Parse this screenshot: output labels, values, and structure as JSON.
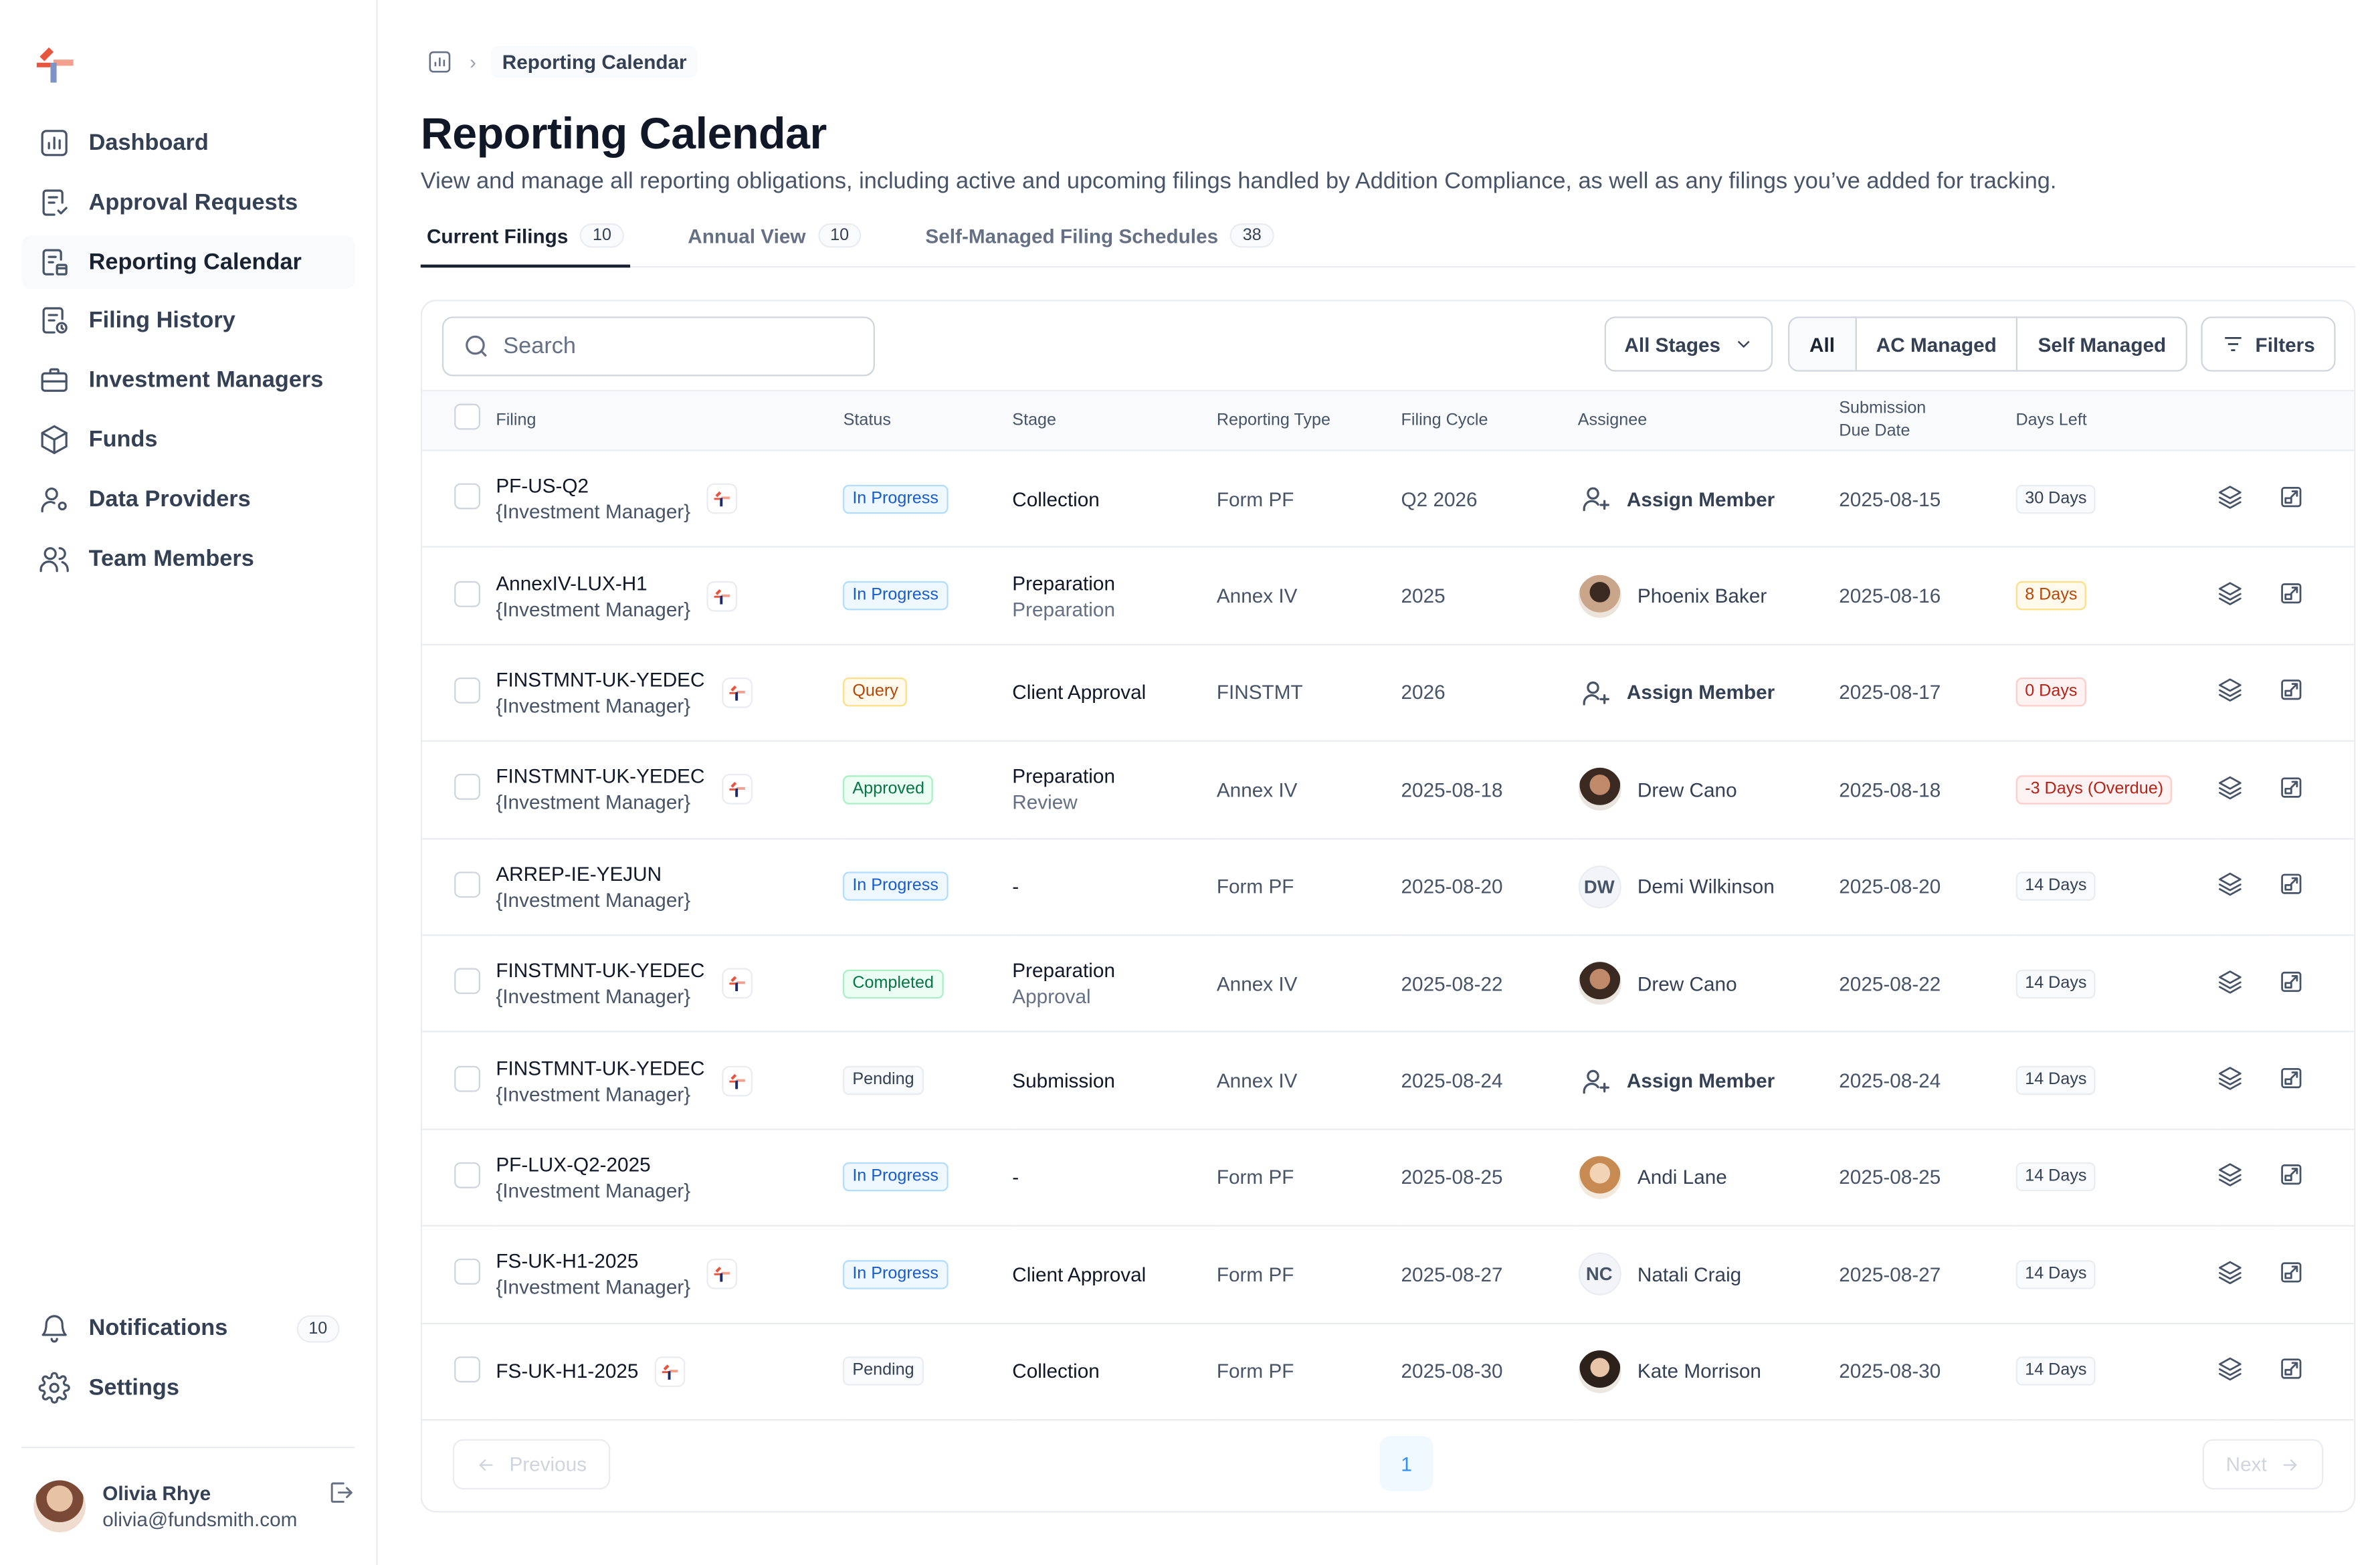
{
  "sidebar": {
    "items": [
      {
        "label": "Dashboard"
      },
      {
        "label": "Approval Requests"
      },
      {
        "label": "Reporting Calendar"
      },
      {
        "label": "Filing History"
      },
      {
        "label": "Investment Managers"
      },
      {
        "label": "Funds"
      },
      {
        "label": "Data Providers"
      },
      {
        "label": "Team Members"
      }
    ],
    "notifications": {
      "label": "Notifications",
      "count": "10"
    },
    "settings": {
      "label": "Settings"
    },
    "user": {
      "name": "Olivia Rhye",
      "email": "olivia@fundsmith.com"
    }
  },
  "breadcrumb": {
    "current": "Reporting Calendar"
  },
  "page": {
    "title": "Reporting Calendar",
    "subtitle": "View and manage all reporting obligations, including active and upcoming filings handled by Addition Compliance, as well as any filings you’ve added for tracking."
  },
  "tabs": [
    {
      "label": "Current Filings",
      "count": "10"
    },
    {
      "label": "Annual View",
      "count": "10"
    },
    {
      "label": "Self-Managed Filing Schedules",
      "count": "38"
    }
  ],
  "toolbar": {
    "search_placeholder": "Search",
    "stage_select": "All Stages",
    "segments": [
      "All",
      "AC Managed",
      "Self Managed"
    ],
    "filters_label": "Filters"
  },
  "table": {
    "headers": {
      "filing": "Filing",
      "status": "Status",
      "stage": "Stage",
      "reporting_type": "Reporting Type",
      "filing_cycle": "Filing Cycle",
      "assignee": "Assignee",
      "due_1": "Submission",
      "due_2": "Due Date",
      "days_left": "Days Left"
    },
    "rows": [
      {
        "name": "PF-US-Q2",
        "manager": "{Investment Manager}",
        "status": "In Progress",
        "stage": "Collection",
        "stage_sub": "",
        "type": "Form PF",
        "cycle": "Q2 2026",
        "assignee": "Assign Member",
        "due": "2025-08-15",
        "days": "30 Days"
      },
      {
        "name": "AnnexIV-LUX-H1",
        "manager": "{Investment Manager}",
        "status": "In Progress",
        "stage": "Preparation",
        "stage_sub": "Preparation",
        "type": "Annex IV",
        "cycle": "2025",
        "assignee": "Phoenix Baker",
        "due": "2025-08-16",
        "days": "8 Days"
      },
      {
        "name": "FINSTMNT-UK-YEDEC",
        "manager": "{Investment Manager}",
        "status": "Query",
        "stage": "Client Approval",
        "stage_sub": "",
        "type": "FINSTMT",
        "cycle": "2026",
        "assignee": "Assign Member",
        "due": "2025-08-17",
        "days": "0 Days"
      },
      {
        "name": "FINSTMNT-UK-YEDEC",
        "manager": "{Investment Manager}",
        "status": "Approved",
        "stage": "Preparation",
        "stage_sub": "Review",
        "type": "Annex IV",
        "cycle": "2025-08-18",
        "assignee": "Drew Cano",
        "due": "2025-08-18",
        "days": "-3 Days (Overdue)"
      },
      {
        "name": "ARREP-IE-YEJUN",
        "manager": "{Investment Manager}",
        "status": "In Progress",
        "stage": "-",
        "stage_sub": "",
        "type": "Form PF",
        "cycle": "2025-08-20",
        "assignee": "Demi Wilkinson",
        "initials": "DW",
        "due": "2025-08-20",
        "days": "14 Days"
      },
      {
        "name": "FINSTMNT-UK-YEDEC",
        "manager": "{Investment Manager}",
        "status": "Completed",
        "stage": "Preparation",
        "stage_sub": "Approval",
        "type": "Annex IV",
        "cycle": "2025-08-22",
        "assignee": "Drew Cano",
        "due": "2025-08-22",
        "days": "14 Days"
      },
      {
        "name": "FINSTMNT-UK-YEDEC",
        "manager": "{Investment Manager}",
        "status": "Pending",
        "stage": "Submission",
        "stage_sub": "",
        "type": "Annex IV",
        "cycle": "2025-08-24",
        "assignee": "Assign Member",
        "due": "2025-08-24",
        "days": "14 Days"
      },
      {
        "name": "PF-LUX-Q2-2025",
        "manager": "{Investment Manager}",
        "status": "In Progress",
        "stage": "-",
        "stage_sub": "",
        "type": "Form PF",
        "cycle": "2025-08-25",
        "assignee": "Andi Lane",
        "due": "2025-08-25",
        "days": "14 Days"
      },
      {
        "name": "FS-UK-H1-2025",
        "manager": "{Investment Manager}",
        "status": "In Progress",
        "stage": "Client Approval",
        "stage_sub": "",
        "type": "Form PF",
        "cycle": "2025-08-27",
        "assignee": "Natali Craig",
        "initials": "NC",
        "due": "2025-08-27",
        "days": "14 Days"
      },
      {
        "name": "FS-UK-H1-2025",
        "manager": "",
        "status": "Pending",
        "stage": "Collection",
        "stage_sub": "",
        "type": "Form PF",
        "cycle": "2025-08-30",
        "assignee": "Kate Morrison",
        "due": "2025-08-30",
        "days": "14 Days"
      }
    ]
  },
  "pagination": {
    "previous": "Previous",
    "next": "Next",
    "page": "1"
  },
  "colors": {
    "accent": "#e8553f",
    "brand_blue": "#1d2a6b"
  }
}
